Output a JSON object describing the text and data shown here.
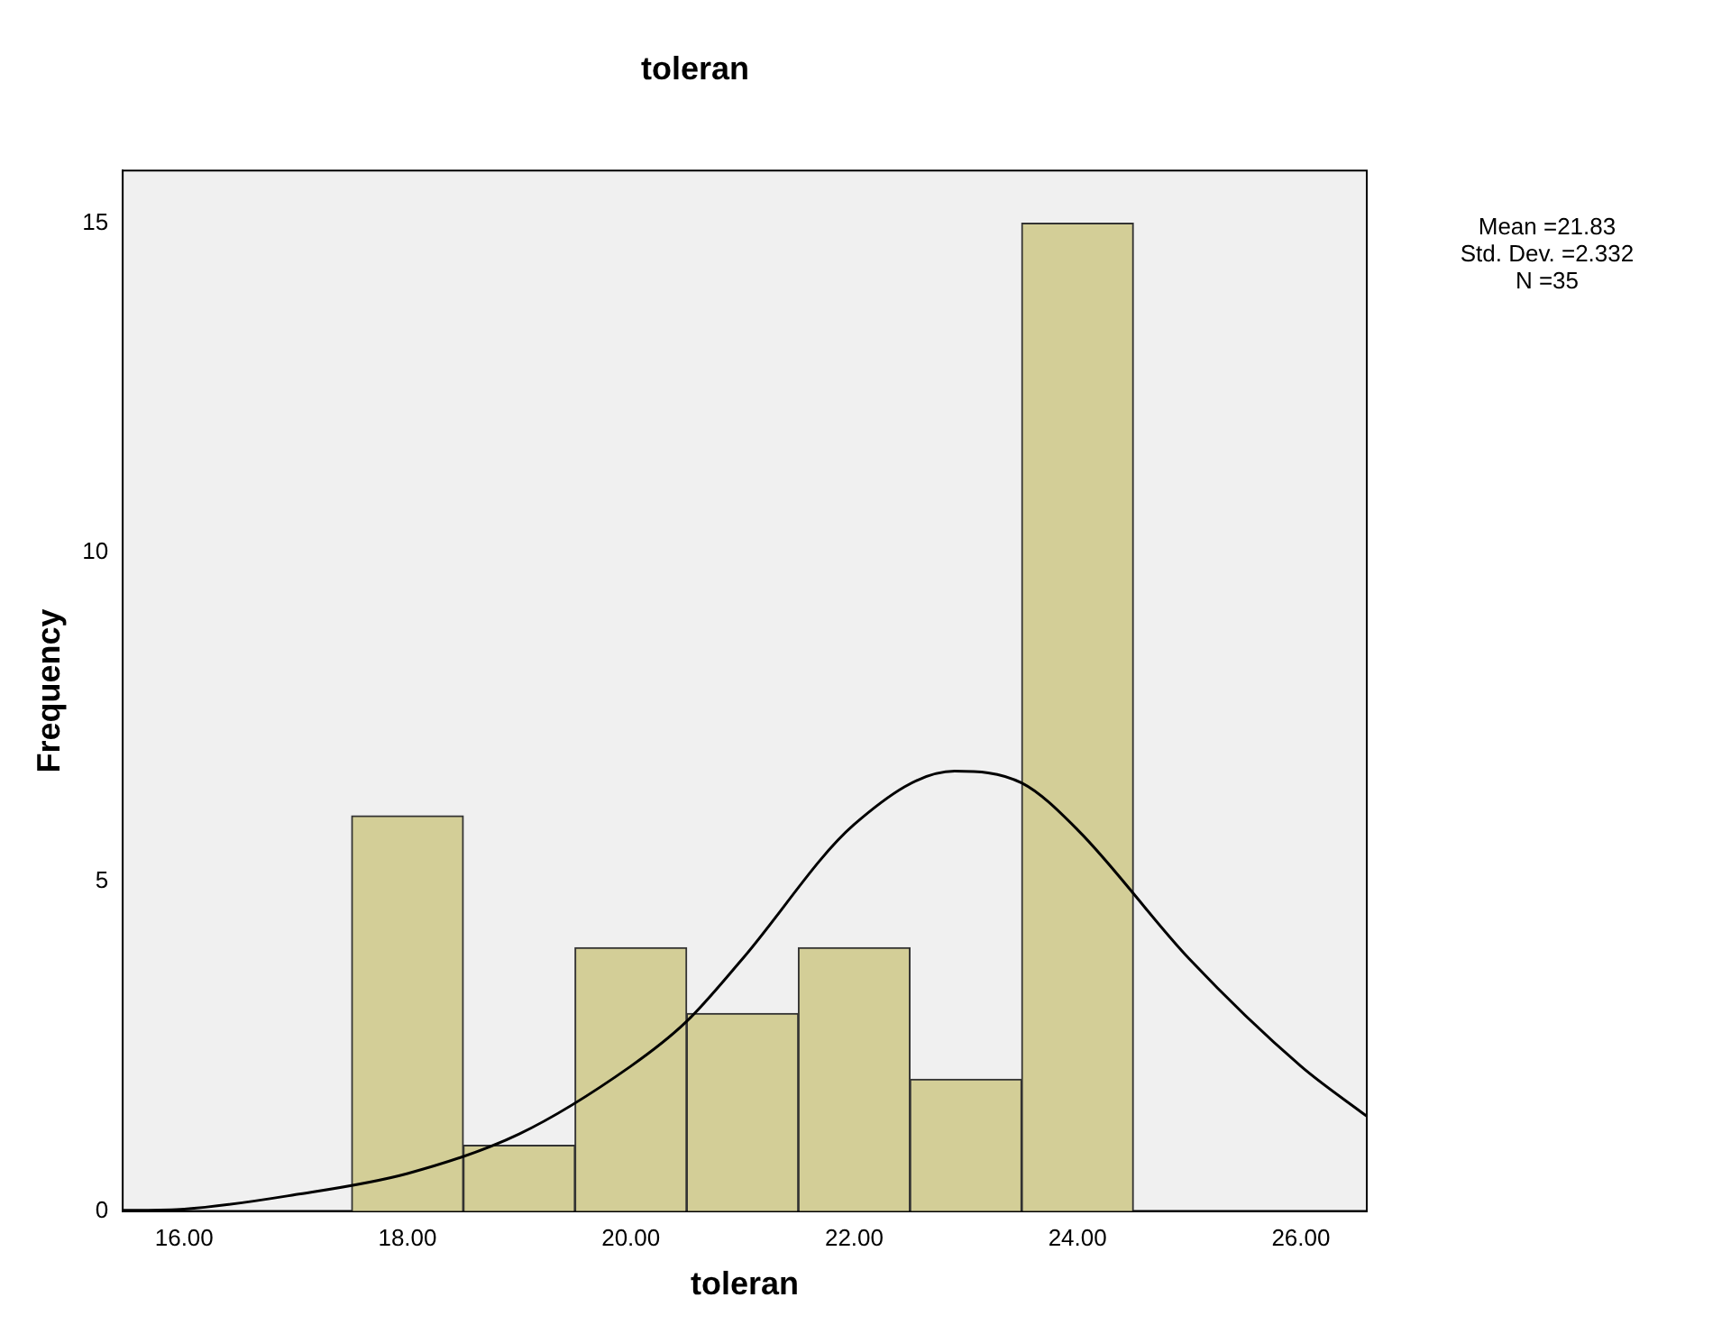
{
  "chart_data": {
    "type": "histogram",
    "title": "toleran",
    "xlabel": "toleran",
    "ylabel": "Frequency",
    "bins": [
      17.5,
      18.5,
      19.5,
      20.5,
      21.5,
      22.5,
      23.5,
      24.5
    ],
    "values": [
      6,
      1,
      4,
      3,
      4,
      2,
      15
    ],
    "color": "#d3ce97",
    "series": [
      {
        "type": "line",
        "color": "#000000",
        "x": [
          15.45,
          16,
          17,
          18,
          19,
          20,
          20.5,
          21,
          22,
          22.9,
          23.5,
          24,
          25,
          26,
          26.59
        ],
        "values": [
          0.01,
          0.03,
          0.25,
          0.57,
          1.17,
          2.2,
          2.88,
          3.83,
          5.87,
          6.68,
          6.5,
          5.79,
          3.83,
          2.2,
          1.44
        ]
      }
    ],
    "xlim": [
      15.45,
      26.59
    ],
    "xticks": [
      {
        "value": 16,
        "label": "16.00"
      },
      {
        "value": 18,
        "label": "18.00"
      },
      {
        "value": 20,
        "label": "20.00"
      },
      {
        "value": 22,
        "label": "22.00"
      },
      {
        "value": 24,
        "label": "24.00"
      },
      {
        "value": 26,
        "label": "26.00"
      }
    ],
    "ylim": [
      0,
      15.8
    ],
    "yticks": [
      0,
      5,
      10,
      15
    ],
    "grid": false,
    "legend": false,
    "marker": "none",
    "annotations": [
      "Mean =21.83",
      "Std. Dev. =2.332",
      "N =35"
    ]
  }
}
